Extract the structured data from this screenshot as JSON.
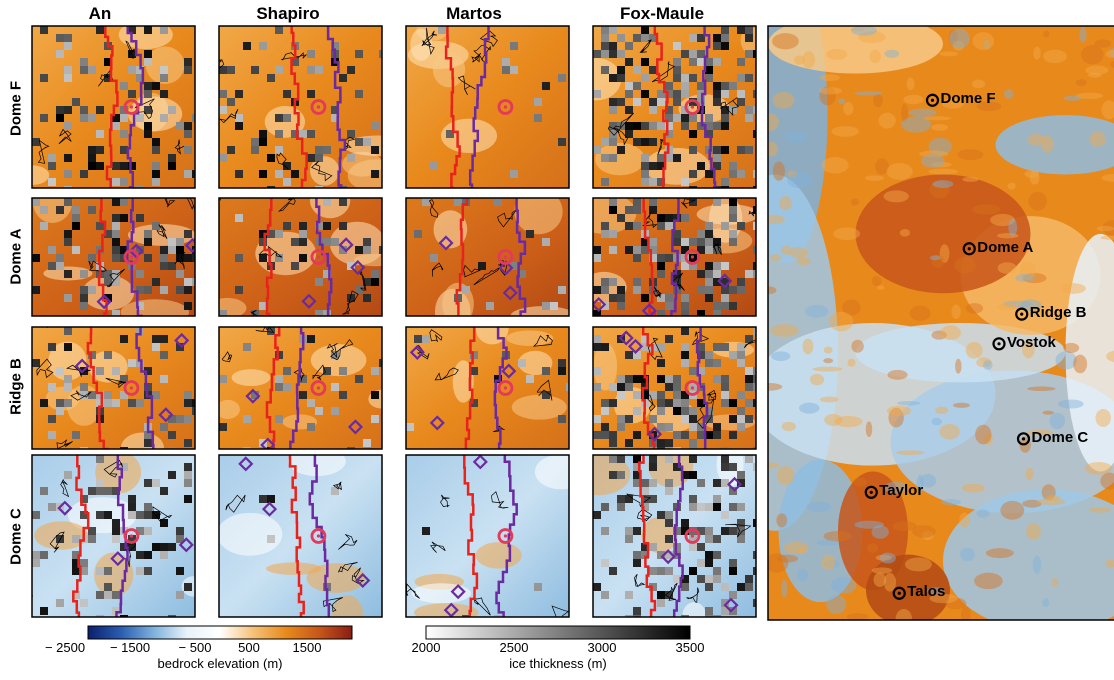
{
  "columns": [
    "An",
    "Shapiro",
    "Martos",
    "Fox-Maule"
  ],
  "rows": [
    "Dome F",
    "Dome A",
    "Ridge B",
    "Dome C"
  ],
  "big_map": {
    "sites": [
      {
        "name": "Dome F",
        "fx": 0.47,
        "fy": 0.125
      },
      {
        "name": "Dome A",
        "fx": 0.575,
        "fy": 0.375
      },
      {
        "name": "Ridge B",
        "fx": 0.725,
        "fy": 0.485
      },
      {
        "name": "Vostok",
        "fx": 0.66,
        "fy": 0.535
      },
      {
        "name": "Dome C",
        "fx": 0.73,
        "fy": 0.695
      },
      {
        "name": "Taylor",
        "fx": 0.295,
        "fy": 0.785
      },
      {
        "name": "Talos",
        "fx": 0.375,
        "fy": 0.955
      }
    ]
  },
  "colorbars": {
    "elevation": {
      "title": "bedrock elevation (m)",
      "ticks": [
        "− 2500",
        "− 1500",
        "− 500",
        "500",
        "1500"
      ],
      "tick_values": [
        -2500,
        -1500,
        -500,
        500,
        1500
      ],
      "range": [
        -3000,
        2000
      ],
      "stops": [
        "#0b1f6e",
        "#2a5db0",
        "#7fb2dc",
        "#e8f2fa",
        "#ffffff",
        "#f6c27a",
        "#e88a1c",
        "#c8561a",
        "#8a1e14"
      ]
    },
    "ice": {
      "title": "ice thickness (m)",
      "ticks": [
        "2000",
        "2500",
        "3000",
        "3500"
      ],
      "tick_values": [
        2000,
        2500,
        3000,
        3500
      ],
      "range": [
        2000,
        3500
      ],
      "stops": [
        "#ffffff",
        "#000000"
      ]
    }
  },
  "colors": {
    "red_line": "#e8231c",
    "purple_line": "#6b2aa0",
    "site_circle": "#e23a5a",
    "orange": "#e88a1c",
    "blue": "#7fb2dc"
  }
}
